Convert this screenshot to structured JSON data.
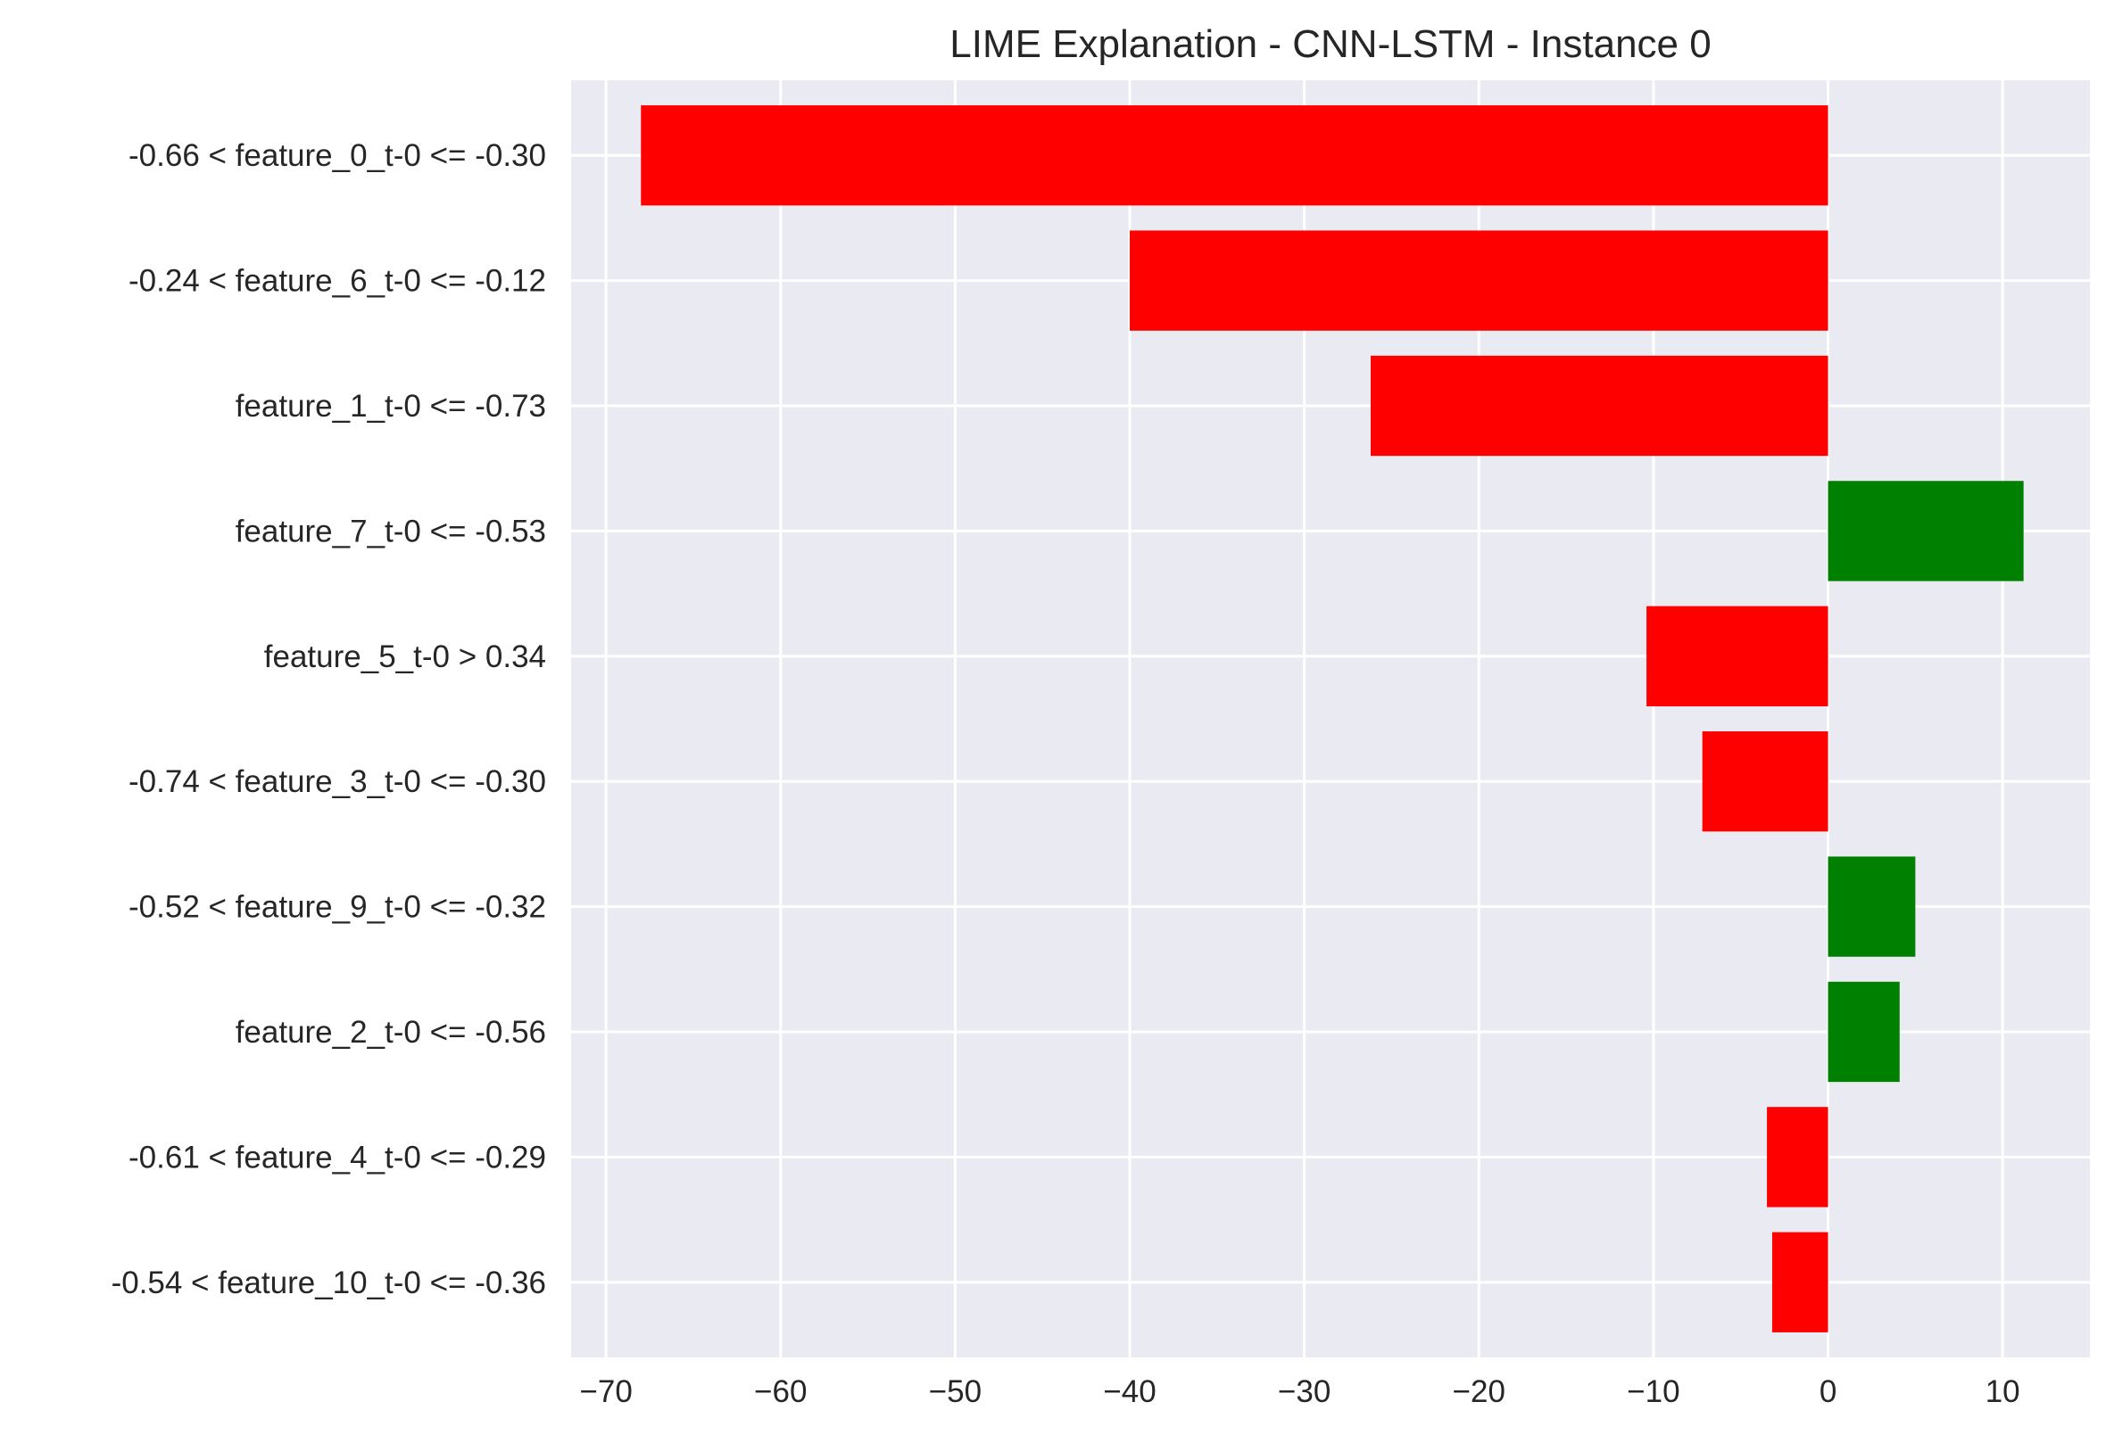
{
  "chart_data": {
    "type": "bar",
    "orientation": "horizontal",
    "title": "LIME Explanation - CNN-LSTM - Instance 0",
    "xlabel": "",
    "ylabel": "",
    "xlim": [
      -72,
      15
    ],
    "x_ticks": [
      -70,
      -60,
      -50,
      -40,
      -30,
      -20,
      -10,
      0,
      10
    ],
    "x_tick_labels": [
      "−70",
      "−60",
      "−50",
      "−40",
      "−30",
      "−20",
      "−10",
      "0",
      "10"
    ],
    "grid": true,
    "categories": [
      "-0.66 < feature_0_t-0 <= -0.30",
      "-0.24 < feature_6_t-0 <= -0.12",
      "feature_1_t-0 <= -0.73",
      "feature_7_t-0 <= -0.53",
      "feature_5_t-0 > 0.34",
      "-0.74 < feature_3_t-0 <= -0.30",
      "-0.52 < feature_9_t-0 <= -0.32",
      "feature_2_t-0 <= -0.56",
      "-0.61 < feature_4_t-0 <= -0.29",
      "-0.54 < feature_10_t-0 <= -0.36"
    ],
    "values": [
      -68.0,
      -40.0,
      -26.2,
      11.2,
      -10.4,
      -7.2,
      5.0,
      4.1,
      -3.5,
      -3.2
    ],
    "colors": {
      "positive": "#008000",
      "negative": "#ff0000",
      "background": "#eaeaf2",
      "grid": "#ffffff",
      "text": "#262626"
    }
  }
}
